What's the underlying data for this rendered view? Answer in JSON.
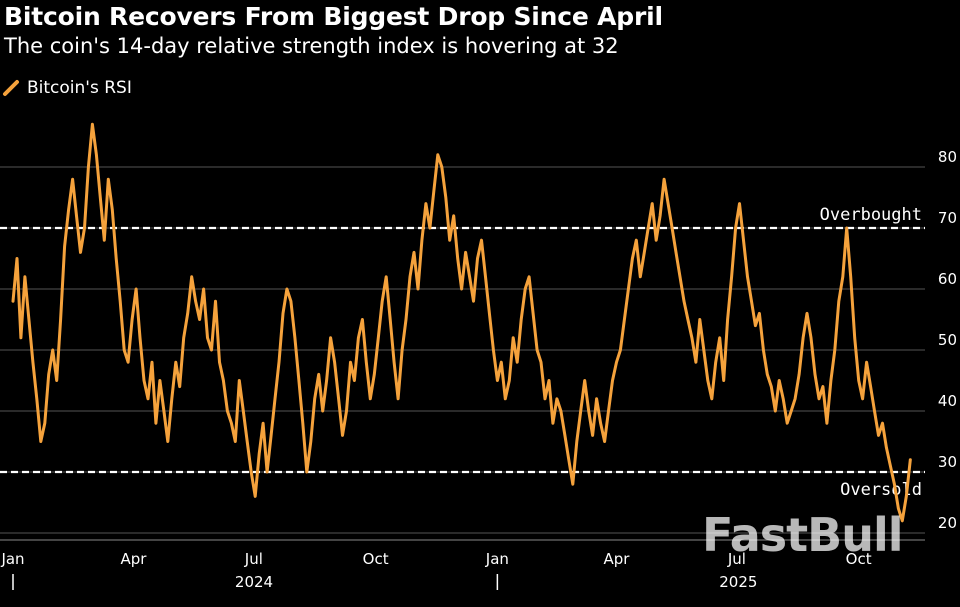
{
  "chart_data": {
    "type": "line",
    "title": "Bitcoin Recovers From Biggest Drop Since April",
    "subtitle": "The coin's 14-day relative strength index is hovering at 32",
    "xlabel": "",
    "ylabel": "",
    "ylim": [
      18,
      92
    ],
    "yticks": [
      20,
      30,
      40,
      50,
      60,
      70,
      80
    ],
    "grid": true,
    "legend_position": "top-left",
    "reference_lines": [
      {
        "label": "Overbought",
        "value": 70
      },
      {
        "label": "Oversold",
        "value": 30
      }
    ],
    "x_ticks": [
      {
        "label": "Jan",
        "day": 0
      },
      {
        "label": "Apr",
        "day": 91
      },
      {
        "label": "Jul",
        "day": 182
      },
      {
        "label": "Oct",
        "day": 274
      },
      {
        "label": "Jan",
        "day": 366
      },
      {
        "label": "Apr",
        "day": 456
      },
      {
        "label": "Jul",
        "day": 547
      },
      {
        "label": "Oct",
        "day": 639
      }
    ],
    "years": [
      {
        "label": "2024",
        "day": 0
      },
      {
        "label": "2025",
        "day": 366
      }
    ],
    "x_range_days": [
      0,
      690
    ],
    "series": [
      {
        "name": "Bitcoin's RSI",
        "color": "#f5a23c",
        "points": [
          [
            0,
            58
          ],
          [
            3,
            65
          ],
          [
            6,
            52
          ],
          [
            9,
            62
          ],
          [
            12,
            55
          ],
          [
            15,
            48
          ],
          [
            18,
            42
          ],
          [
            21,
            35
          ],
          [
            24,
            38
          ],
          [
            27,
            46
          ],
          [
            30,
            50
          ],
          [
            33,
            45
          ],
          [
            36,
            55
          ],
          [
            39,
            67
          ],
          [
            42,
            73
          ],
          [
            45,
            78
          ],
          [
            48,
            72
          ],
          [
            51,
            66
          ],
          [
            54,
            70
          ],
          [
            57,
            80
          ],
          [
            60,
            87
          ],
          [
            63,
            82
          ],
          [
            66,
            75
          ],
          [
            69,
            68
          ],
          [
            72,
            78
          ],
          [
            75,
            73
          ],
          [
            78,
            65
          ],
          [
            81,
            58
          ],
          [
            84,
            50
          ],
          [
            87,
            48
          ],
          [
            90,
            55
          ],
          [
            93,
            60
          ],
          [
            96,
            52
          ],
          [
            99,
            45
          ],
          [
            102,
            42
          ],
          [
            105,
            48
          ],
          [
            108,
            38
          ],
          [
            111,
            45
          ],
          [
            114,
            40
          ],
          [
            117,
            35
          ],
          [
            120,
            42
          ],
          [
            123,
            48
          ],
          [
            126,
            44
          ],
          [
            129,
            52
          ],
          [
            132,
            56
          ],
          [
            135,
            62
          ],
          [
            138,
            58
          ],
          [
            141,
            55
          ],
          [
            144,
            60
          ],
          [
            147,
            52
          ],
          [
            150,
            50
          ],
          [
            153,
            58
          ],
          [
            156,
            48
          ],
          [
            159,
            45
          ],
          [
            162,
            40
          ],
          [
            165,
            38
          ],
          [
            168,
            35
          ],
          [
            171,
            45
          ],
          [
            174,
            40
          ],
          [
            177,
            35
          ],
          [
            180,
            30
          ],
          [
            183,
            26
          ],
          [
            186,
            33
          ],
          [
            189,
            38
          ],
          [
            192,
            30
          ],
          [
            195,
            36
          ],
          [
            198,
            42
          ],
          [
            201,
            48
          ],
          [
            204,
            56
          ],
          [
            207,
            60
          ],
          [
            210,
            58
          ],
          [
            213,
            52
          ],
          [
            216,
            45
          ],
          [
            219,
            38
          ],
          [
            222,
            30
          ],
          [
            225,
            35
          ],
          [
            228,
            42
          ],
          [
            231,
            46
          ],
          [
            234,
            40
          ],
          [
            237,
            45
          ],
          [
            240,
            52
          ],
          [
            243,
            48
          ],
          [
            246,
            42
          ],
          [
            249,
            36
          ],
          [
            252,
            40
          ],
          [
            255,
            48
          ],
          [
            258,
            45
          ],
          [
            261,
            52
          ],
          [
            264,
            55
          ],
          [
            267,
            48
          ],
          [
            270,
            42
          ],
          [
            273,
            46
          ],
          [
            276,
            52
          ],
          [
            279,
            58
          ],
          [
            282,
            62
          ],
          [
            285,
            55
          ],
          [
            288,
            48
          ],
          [
            291,
            42
          ],
          [
            294,
            50
          ],
          [
            297,
            55
          ],
          [
            300,
            62
          ],
          [
            303,
            66
          ],
          [
            306,
            60
          ],
          [
            309,
            68
          ],
          [
            312,
            74
          ],
          [
            315,
            70
          ],
          [
            318,
            76
          ],
          [
            321,
            82
          ],
          [
            324,
            80
          ],
          [
            327,
            75
          ],
          [
            330,
            68
          ],
          [
            333,
            72
          ],
          [
            336,
            65
          ],
          [
            339,
            60
          ],
          [
            342,
            66
          ],
          [
            345,
            62
          ],
          [
            348,
            58
          ],
          [
            351,
            65
          ],
          [
            354,
            68
          ],
          [
            357,
            62
          ],
          [
            360,
            56
          ],
          [
            363,
            50
          ],
          [
            366,
            45
          ],
          [
            369,
            48
          ],
          [
            372,
            42
          ],
          [
            375,
            45
          ],
          [
            378,
            52
          ],
          [
            381,
            48
          ],
          [
            384,
            55
          ],
          [
            387,
            60
          ],
          [
            390,
            62
          ],
          [
            393,
            56
          ],
          [
            396,
            50
          ],
          [
            399,
            48
          ],
          [
            402,
            42
          ],
          [
            405,
            45
          ],
          [
            408,
            38
          ],
          [
            411,
            42
          ],
          [
            414,
            40
          ],
          [
            417,
            36
          ],
          [
            420,
            32
          ],
          [
            423,
            28
          ],
          [
            426,
            35
          ],
          [
            429,
            40
          ],
          [
            432,
            45
          ],
          [
            435,
            40
          ],
          [
            438,
            36
          ],
          [
            441,
            42
          ],
          [
            444,
            38
          ],
          [
            447,
            35
          ],
          [
            450,
            40
          ],
          [
            453,
            45
          ],
          [
            456,
            48
          ],
          [
            459,
            50
          ],
          [
            462,
            55
          ],
          [
            465,
            60
          ],
          [
            468,
            65
          ],
          [
            471,
            68
          ],
          [
            474,
            62
          ],
          [
            477,
            66
          ],
          [
            480,
            70
          ],
          [
            483,
            74
          ],
          [
            486,
            68
          ],
          [
            489,
            72
          ],
          [
            492,
            78
          ],
          [
            495,
            74
          ],
          [
            498,
            70
          ],
          [
            501,
            66
          ],
          [
            504,
            62
          ],
          [
            507,
            58
          ],
          [
            510,
            55
          ],
          [
            513,
            52
          ],
          [
            516,
            48
          ],
          [
            519,
            55
          ],
          [
            522,
            50
          ],
          [
            525,
            45
          ],
          [
            528,
            42
          ],
          [
            531,
            48
          ],
          [
            534,
            52
          ],
          [
            537,
            45
          ],
          [
            540,
            55
          ],
          [
            543,
            62
          ],
          [
            546,
            70
          ],
          [
            549,
            74
          ],
          [
            552,
            68
          ],
          [
            555,
            62
          ],
          [
            558,
            58
          ],
          [
            561,
            54
          ],
          [
            564,
            56
          ],
          [
            567,
            50
          ],
          [
            570,
            46
          ],
          [
            573,
            44
          ],
          [
            576,
            40
          ],
          [
            579,
            45
          ],
          [
            582,
            42
          ],
          [
            585,
            38
          ],
          [
            588,
            40
          ],
          [
            591,
            42
          ],
          [
            594,
            46
          ],
          [
            597,
            52
          ],
          [
            600,
            56
          ],
          [
            603,
            52
          ],
          [
            606,
            46
          ],
          [
            609,
            42
          ],
          [
            612,
            44
          ],
          [
            615,
            38
          ],
          [
            618,
            45
          ],
          [
            621,
            50
          ],
          [
            624,
            58
          ],
          [
            627,
            62
          ],
          [
            630,
            70
          ],
          [
            633,
            62
          ],
          [
            636,
            52
          ],
          [
            639,
            45
          ],
          [
            642,
            42
          ],
          [
            645,
            48
          ],
          [
            648,
            44
          ],
          [
            651,
            40
          ],
          [
            654,
            36
          ],
          [
            657,
            38
          ],
          [
            660,
            34
          ],
          [
            663,
            31
          ],
          [
            666,
            28
          ],
          [
            669,
            24
          ],
          [
            672,
            22
          ],
          [
            675,
            26
          ],
          [
            678,
            32
          ]
        ]
      }
    ]
  },
  "legend": {
    "label": "Bitcoin's RSI"
  },
  "watermark": {
    "text": "FastBull"
  },
  "colors": {
    "background": "#000000",
    "line": "#f5a23c",
    "grid": "#555555",
    "text": "#ffffff"
  }
}
